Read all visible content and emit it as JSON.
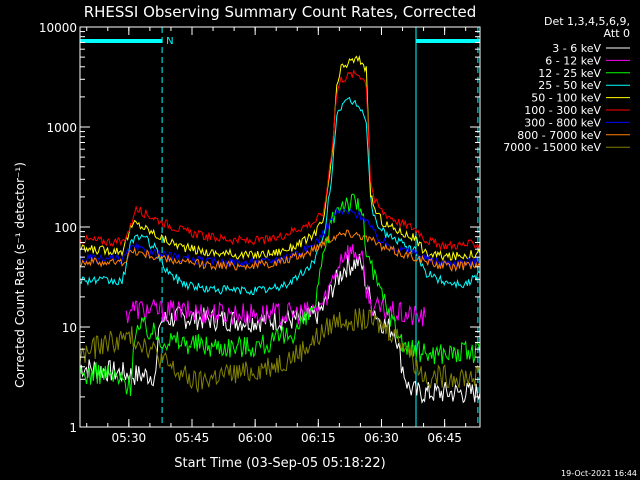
{
  "chart_data": {
    "type": "line",
    "title": "RHESSI Observing Summary Count Rates, Corrected",
    "xlabel": "Start Time (03-Sep-05 05:18:22)",
    "ylabel": "Corrected Count Rate (s⁻¹ detector⁻¹)",
    "yscale": "log",
    "ylim": [
      1,
      10000
    ],
    "xlim_minutes": [
      0,
      95
    ],
    "x_ticks": [
      {
        "t": 11.6,
        "label": "05:30"
      },
      {
        "t": 26.6,
        "label": "05:45"
      },
      {
        "t": 41.6,
        "label": "06:00"
      },
      {
        "t": 56.6,
        "label": "06:15"
      },
      {
        "t": 71.6,
        "label": "06:30"
      },
      {
        "t": 86.6,
        "label": "06:45"
      }
    ],
    "y_ticks": [
      {
        "v": 1,
        "label": "1"
      },
      {
        "v": 10,
        "label": "10"
      },
      {
        "v": 100,
        "label": "100"
      },
      {
        "v": 1000,
        "label": "1000"
      },
      {
        "v": 10000,
        "label": "10000"
      }
    ],
    "legend_header": [
      "Det 1,3,4,5,6,9,",
      "Att 0"
    ],
    "legend_position": "right",
    "night_marker": "N",
    "night_intervals": [
      [
        0,
        19.5
      ],
      [
        79.8,
        95
      ]
    ],
    "vlines": [
      0,
      19.5,
      79.8,
      94.5
    ],
    "timestamp": "19-Oct-2021 16:44",
    "series": [
      {
        "name": "3 - 6 keV",
        "color": "#ffffff",
        "x": [
          0,
          13,
          18,
          19,
          23,
          30,
          40,
          50,
          54,
          56,
          58,
          60,
          63,
          66,
          67,
          69,
          71,
          73,
          75,
          76,
          77,
          78,
          80,
          95
        ],
        "y": [
          4,
          3.3,
          3.3,
          11.5,
          12.5,
          12,
          11.5,
          11.8,
          12,
          13,
          16,
          25,
          40,
          45,
          40,
          18,
          12,
          10,
          9,
          5,
          3.5,
          2.5,
          2.2,
          2.2
        ]
      },
      {
        "name": "6 - 12 keV",
        "color": "#ff00ff",
        "x": [
          11,
          12,
          15,
          20,
          30,
          40,
          50,
          54,
          56,
          58,
          60,
          62,
          63,
          66,
          67,
          68,
          69,
          71,
          74,
          78,
          82
        ],
        "y": [
          13,
          15.5,
          15,
          14.5,
          14,
          13.5,
          13.5,
          14,
          15,
          18,
          30,
          50,
          58,
          55,
          45,
          25,
          17,
          15,
          14,
          13,
          12.5
        ]
      },
      {
        "name": "12 - 25 keV",
        "color": "#00ff00",
        "x": [
          0,
          6,
          12,
          13,
          15,
          20,
          30,
          40,
          46,
          50,
          54,
          56,
          58,
          60,
          62,
          63,
          66,
          67,
          68,
          70,
          72,
          74,
          76,
          78,
          82,
          95
        ],
        "y": [
          3.3,
          3.5,
          2.6,
          9,
          10,
          7.5,
          6.5,
          6.4,
          7,
          8.5,
          12,
          18,
          50,
          130,
          175,
          180,
          170,
          140,
          60,
          30,
          20,
          12,
          8,
          6,
          5.5,
          5.5
        ]
      },
      {
        "name": "25 - 50 keV",
        "color": "#00ffff",
        "x": [
          0,
          10,
          12,
          13,
          15,
          18,
          20,
          22,
          25,
          30,
          40,
          46,
          50,
          54,
          56,
          58,
          60,
          61,
          62,
          64,
          66,
          67,
          68,
          69,
          70,
          72,
          76,
          80,
          82,
          85,
          88,
          90,
          92,
          95
        ],
        "y": [
          30,
          28,
          65,
          82,
          80,
          60,
          40,
          32,
          27,
          24,
          23,
          24,
          28,
          38,
          50,
          80,
          400,
          1400,
          1600,
          1800,
          1700,
          1500,
          1100,
          200,
          120,
          90,
          70,
          55,
          35,
          30,
          28,
          27,
          27,
          35
        ]
      },
      {
        "name": "50 - 100 keV",
        "color": "#ffff00",
        "x": [
          0,
          10,
          12,
          13,
          15,
          20,
          25,
          30,
          40,
          46,
          50,
          54,
          56,
          58,
          60,
          61,
          62,
          64,
          66,
          67,
          68,
          69,
          70,
          72,
          76,
          80,
          82,
          85,
          88,
          95
        ],
        "y": [
          60,
          58,
          95,
          110,
          100,
          75,
          62,
          56,
          52,
          55,
          62,
          75,
          90,
          120,
          600,
          2500,
          3800,
          4500,
          4800,
          4500,
          3800,
          220,
          150,
          110,
          90,
          75,
          55,
          52,
          50,
          55
        ]
      },
      {
        "name": "100 - 300 keV",
        "color": "#ff0000",
        "x": [
          0,
          10,
          12,
          13,
          15,
          20,
          25,
          30,
          40,
          46,
          50,
          54,
          56,
          58,
          60,
          61,
          62,
          64,
          66,
          67,
          68,
          69,
          70,
          72,
          76,
          80,
          82,
          85,
          88,
          95
        ],
        "y": [
          75,
          70,
          100,
          150,
          140,
          110,
          90,
          80,
          72,
          75,
          90,
          105,
          115,
          145,
          700,
          2200,
          3000,
          3300,
          3400,
          3200,
          2700,
          300,
          180,
          140,
          110,
          95,
          75,
          67,
          65,
          68
        ]
      },
      {
        "name": "300 - 800 keV",
        "color": "#0000ff",
        "x": [
          0,
          10,
          12,
          13,
          15,
          20,
          25,
          30,
          40,
          46,
          50,
          54,
          56,
          58,
          60,
          61,
          62,
          64,
          66,
          67,
          68,
          69,
          70,
          72,
          76,
          80,
          82,
          85,
          88,
          95
        ],
        "y": [
          48,
          47,
          60,
          62,
          58,
          52,
          48,
          45,
          44,
          46,
          52,
          60,
          70,
          90,
          125,
          138,
          142,
          140,
          135,
          128,
          120,
          100,
          85,
          70,
          60,
          55,
          48,
          45,
          43,
          46
        ]
      },
      {
        "name": "800 - 7000 keV",
        "color": "#ff8000",
        "x": [
          0,
          10,
          12,
          13,
          15,
          20,
          25,
          30,
          40,
          46,
          50,
          54,
          56,
          58,
          60,
          62,
          64,
          66,
          67,
          68,
          70,
          72,
          76,
          80,
          82,
          85,
          88,
          95
        ],
        "y": [
          45,
          44,
          55,
          57,
          54,
          48,
          44,
          42,
          41,
          43,
          48,
          55,
          62,
          72,
          80,
          85,
          87,
          85,
          82,
          78,
          70,
          62,
          55,
          50,
          45,
          42,
          40,
          42
        ]
      },
      {
        "name": "7000 - 15000 keV",
        "color": "#808000",
        "x": [
          0,
          3,
          6,
          10,
          12,
          15,
          18,
          20,
          23,
          25,
          28,
          30,
          33,
          36,
          40,
          44,
          48,
          50,
          52,
          55,
          58,
          60,
          62,
          66,
          68,
          70,
          72,
          74,
          76,
          78,
          80,
          82,
          95
        ],
        "y": [
          5,
          6,
          7,
          7.5,
          8,
          7,
          5.5,
          4.5,
          3.5,
          3.2,
          2.7,
          3,
          3.3,
          3.4,
          3.5,
          4,
          4.5,
          5,
          5.5,
          7,
          9,
          11,
          12,
          12,
          11.5,
          11,
          10,
          9,
          7.5,
          6,
          4,
          3.2,
          3.2
        ]
      }
    ]
  }
}
